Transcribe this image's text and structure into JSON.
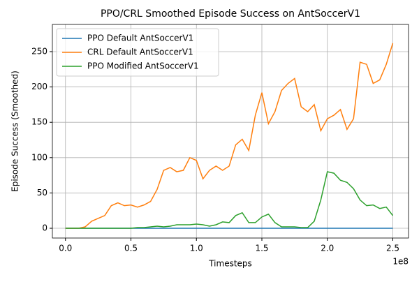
{
  "chart_data": {
    "type": "line",
    "title": "PPO/CRL Smoothed Episode Success on AntSoccerV1",
    "x_label": "Timesteps",
    "y_label": "Episode Success (Smoothed)",
    "x_offset_label": "1e8",
    "x": [
      0,
      0.05,
      0.1,
      0.15,
      0.2,
      0.25,
      0.3,
      0.35,
      0.4,
      0.45,
      0.5,
      0.55,
      0.6,
      0.65,
      0.7,
      0.75,
      0.8,
      0.85,
      0.9,
      0.95,
      1.0,
      1.05,
      1.1,
      1.15,
      1.2,
      1.25,
      1.3,
      1.35,
      1.4,
      1.45,
      1.5,
      1.55,
      1.6,
      1.65,
      1.7,
      1.75,
      1.8,
      1.85,
      1.9,
      1.95,
      2.0,
      2.05,
      2.1,
      2.15,
      2.2,
      2.25,
      2.3,
      2.35,
      2.4,
      2.45,
      2.5
    ],
    "series": [
      {
        "name": "PPO Default AntSoccerV1",
        "color": "#1f77b4",
        "values": [
          0,
          0,
          0,
          0,
          0,
          0,
          0,
          0,
          0,
          0,
          0,
          0,
          0,
          0,
          0,
          0,
          0,
          0,
          0,
          0,
          0,
          0,
          0,
          0,
          0,
          0,
          0,
          0,
          0,
          0,
          0,
          0,
          0,
          0,
          0,
          0,
          0,
          0,
          0,
          0,
          0,
          0,
          0,
          0,
          0,
          0,
          0,
          0,
          0,
          0,
          0
        ]
      },
      {
        "name": "CRL Default AntSoccerV1",
        "color": "#ff7f0e",
        "values": [
          0,
          0,
          0,
          2,
          10,
          14,
          18,
          32,
          36,
          32,
          33,
          30,
          33,
          38,
          55,
          82,
          86,
          80,
          82,
          100,
          96,
          70,
          82,
          88,
          82,
          88,
          118,
          126,
          110,
          160,
          192,
          148,
          165,
          195,
          205,
          212,
          172,
          165,
          175,
          138,
          155,
          160,
          168,
          140,
          155,
          235,
          232,
          205,
          210,
          232,
          262
        ]
      },
      {
        "name": "PPO Modified AntSoccerV1",
        "color": "#2ca02c",
        "values": [
          0,
          0,
          0,
          0,
          0,
          0,
          0,
          0,
          0,
          0,
          0,
          1,
          1,
          2,
          3,
          2,
          3,
          5,
          5,
          5,
          6,
          5,
          3,
          5,
          9,
          8,
          18,
          22,
          8,
          8,
          16,
          20,
          8,
          2,
          2,
          2,
          1,
          1,
          10,
          40,
          80,
          78,
          68,
          65,
          56,
          40,
          32,
          33,
          28,
          30,
          18
        ]
      }
    ],
    "xlim": [
      -0.1,
      2.62
    ],
    "ylim": [
      -13.8,
      288.5
    ],
    "xticks": [
      {
        "value": 0,
        "label": "0.0"
      },
      0.5,
      {
        "value": 1,
        "label": "1.0"
      },
      1.5,
      {
        "value": 2,
        "label": "2.0"
      },
      2.5
    ],
    "yticks": [
      0,
      50,
      100,
      150,
      200,
      250
    ],
    "grid": true,
    "legend": "upper-left"
  }
}
